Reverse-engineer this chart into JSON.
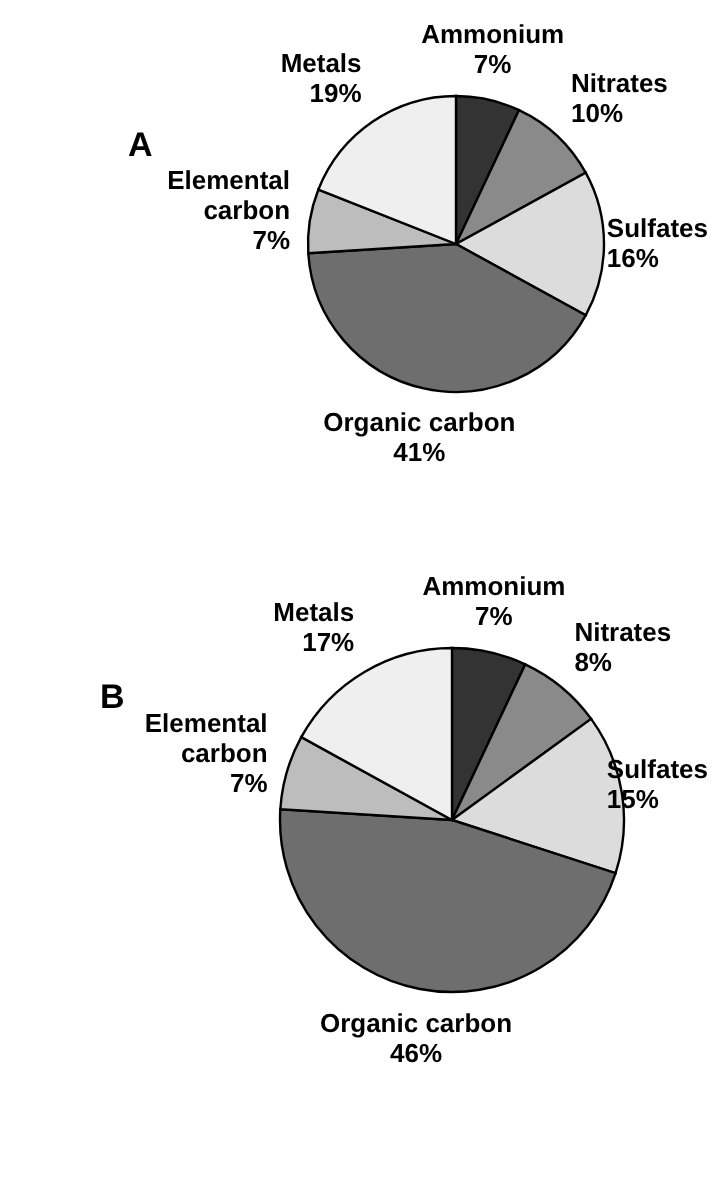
{
  "chart_data": [
    {
      "type": "pie",
      "title": "A",
      "categories": [
        "Ammonium",
        "Nitrates",
        "Sulfates",
        "Organic carbon",
        "Elemental carbon",
        "Metals"
      ],
      "values": [
        7,
        10,
        16,
        41,
        7,
        19
      ],
      "value_labels": [
        "7%",
        "10%",
        "16%",
        "41%",
        "7%",
        "19%"
      ],
      "colors": [
        "#333333",
        "#8a8a8a",
        "#dcdcdc",
        "#6e6e6e",
        "#bdbdbd",
        "#efefef"
      ]
    },
    {
      "type": "pie",
      "title": "B",
      "categories": [
        "Ammonium",
        "Nitrates",
        "Sulfates",
        "Organic carbon",
        "Elemental carbon",
        "Metals"
      ],
      "values": [
        7,
        8,
        15,
        46,
        7,
        17
      ],
      "value_labels": [
        "7%",
        "8%",
        "15%",
        "46%",
        "7%",
        "17%"
      ],
      "colors": [
        "#333333",
        "#8a8a8a",
        "#dcdcdc",
        "#6e6e6e",
        "#bdbdbd",
        "#efefef"
      ]
    }
  ]
}
